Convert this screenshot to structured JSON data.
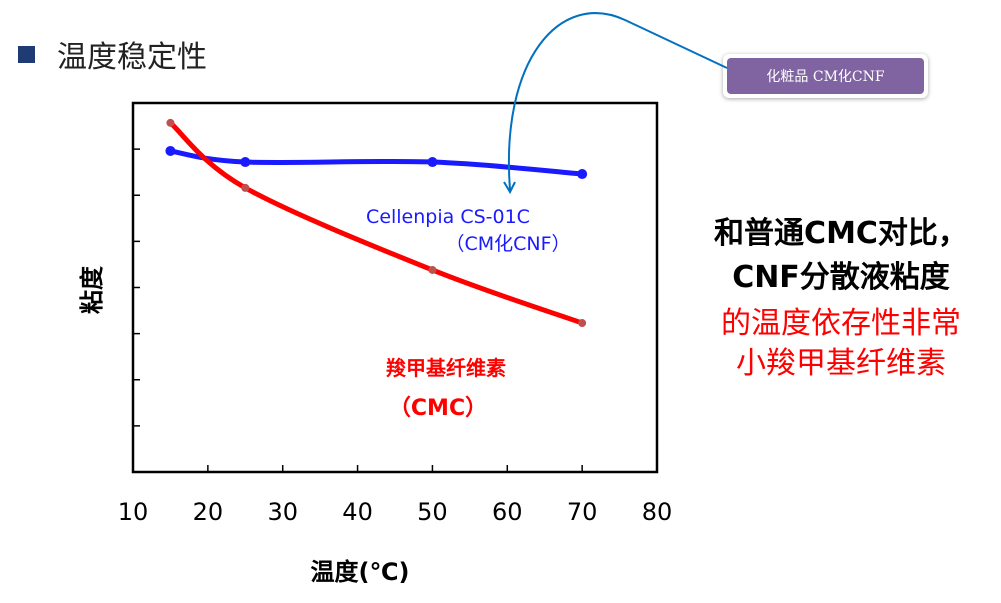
{
  "title": "温度稳定性",
  "callout": "化粧品 CM化CNF",
  "colors": {
    "blue": "#1a1aff",
    "red": "#ff0000",
    "purple": "#8064a2",
    "arrow": "#0070c0"
  },
  "chart_data": {
    "type": "line",
    "xlabel": "温度(℃)",
    "ylabel": "粘度",
    "xlim": [
      10,
      80
    ],
    "ylim": [
      0,
      8
    ],
    "xticks": [
      "10",
      "20",
      "30",
      "40",
      "50",
      "60",
      "70",
      "80"
    ],
    "series": [
      {
        "name": "Cellenpia CS-01C",
        "name2": "（CM化CNF）",
        "color": "#1a1aff",
        "x": [
          15,
          25,
          50,
          70
        ],
        "y": [
          6.96,
          6.72,
          6.72,
          6.46
        ]
      },
      {
        "name": "羧甲基纤维素",
        "name2": "（CMC）",
        "color": "#ff0000",
        "x": [
          15,
          25,
          50,
          70
        ],
        "y": [
          7.57,
          6.16,
          4.38,
          3.23
        ]
      }
    ]
  },
  "right_text": {
    "line1": "和普通CMC对比，",
    "line2": "CNF分散液粘度",
    "line3": "的温度依存性非常",
    "line4": "小羧甲基纤维素"
  }
}
